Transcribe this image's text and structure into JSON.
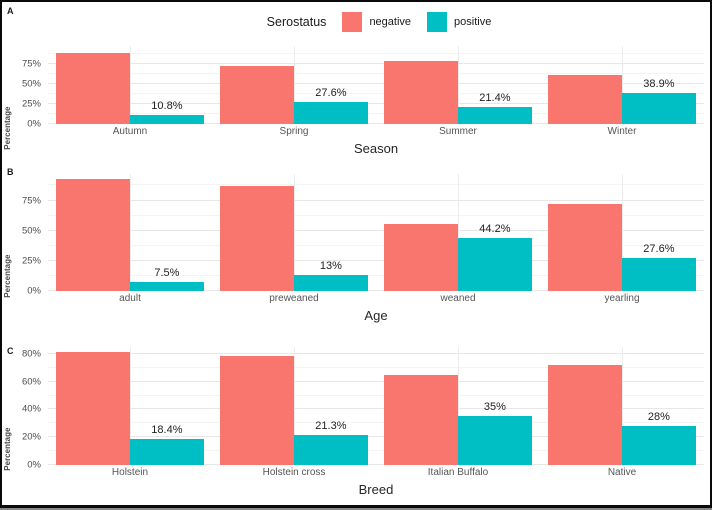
{
  "figure": {
    "panel_letters": [
      "A",
      "B",
      "C"
    ],
    "legend": {
      "title": "Serostatus",
      "entries": [
        {
          "label": "negative",
          "color": "#F8766D"
        },
        {
          "label": "positive",
          "color": "#00BFC4"
        }
      ],
      "position": "top-center"
    }
  },
  "chart_data": [
    {
      "panel": "A",
      "type": "bar",
      "title": "",
      "xlabel": "Season",
      "ylabel": "Percentage",
      "categories": [
        "Autumn",
        "Spring",
        "Summer",
        "Winter"
      ],
      "series": [
        {
          "name": "negative",
          "color": "#F8766D",
          "values": [
            89.2,
            72.4,
            78.6,
            61.1
          ]
        },
        {
          "name": "positive",
          "color": "#00BFC4",
          "values": [
            10.8,
            27.6,
            21.4,
            38.9
          ]
        }
      ],
      "bar_labels": [
        "10.8%",
        "27.6%",
        "21.4%",
        "38.9%"
      ],
      "bar_labels_on": "positive",
      "yticks": [
        {
          "value": 0,
          "label": "0%"
        },
        {
          "value": 25,
          "label": "25%"
        },
        {
          "value": 50,
          "label": "50%"
        },
        {
          "value": 75,
          "label": "75%"
        }
      ],
      "minor_ticks": [
        12.5,
        37.5,
        62.5,
        87.5
      ],
      "ylim": [
        0,
        98
      ],
      "grid": true,
      "legend_position": "top"
    },
    {
      "panel": "B",
      "type": "bar",
      "title": "",
      "xlabel": "Age",
      "ylabel": "Percentage",
      "categories": [
        "adult",
        "preweaned",
        "weaned",
        "yearling"
      ],
      "series": [
        {
          "name": "negative",
          "color": "#F8766D",
          "values": [
            92.5,
            87.0,
            55.8,
            72.4
          ]
        },
        {
          "name": "positive",
          "color": "#00BFC4",
          "values": [
            7.5,
            13.0,
            44.2,
            27.6
          ]
        }
      ],
      "bar_labels": [
        "7.5%",
        "13%",
        "44.2%",
        "27.6%"
      ],
      "bar_labels_on": "positive",
      "yticks": [
        {
          "value": 0,
          "label": "0%"
        },
        {
          "value": 25,
          "label": "25%"
        },
        {
          "value": 50,
          "label": "50%"
        },
        {
          "value": 75,
          "label": "75%"
        }
      ],
      "minor_ticks": [
        12.5,
        37.5,
        62.5,
        87.5
      ],
      "ylim": [
        0,
        97
      ],
      "grid": true,
      "legend_position": "top"
    },
    {
      "panel": "C",
      "type": "bar",
      "title": "",
      "xlabel": "Breed",
      "ylabel": "Percentage",
      "categories": [
        "Holstein",
        "Holstein cross",
        "Italian Buffalo",
        "Native"
      ],
      "series": [
        {
          "name": "negative",
          "color": "#F8766D",
          "values": [
            81.6,
            78.7,
            65.0,
            72.0
          ]
        },
        {
          "name": "positive",
          "color": "#00BFC4",
          "values": [
            18.4,
            21.3,
            35.0,
            28.0
          ]
        }
      ],
      "bar_labels": [
        "18.4%",
        "21.3%",
        "35%",
        "28%"
      ],
      "bar_labels_on": "positive",
      "yticks": [
        {
          "value": 0,
          "label": "0%"
        },
        {
          "value": 20,
          "label": "20%"
        },
        {
          "value": 40,
          "label": "40%"
        },
        {
          "value": 60,
          "label": "60%"
        },
        {
          "value": 80,
          "label": "80%"
        }
      ],
      "minor_ticks": [
        10,
        30,
        50,
        70
      ],
      "ylim": [
        0,
        85
      ],
      "grid": true,
      "legend_position": "top"
    }
  ]
}
